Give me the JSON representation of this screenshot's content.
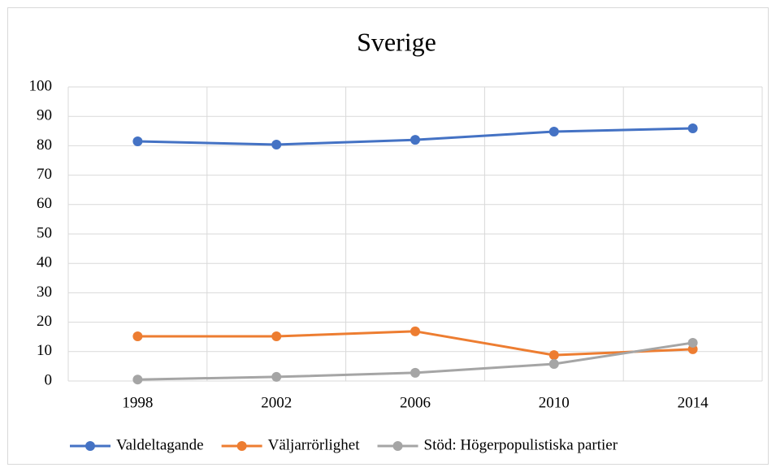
{
  "chart_data": {
    "type": "line",
    "title": "Sverige",
    "categories": [
      "1998",
      "2002",
      "2006",
      "2010",
      "2014"
    ],
    "series": [
      {
        "name": "Valdeltagande",
        "color": "#4472c4",
        "values": [
          81.5,
          80.4,
          82.0,
          84.8,
          85.9
        ]
      },
      {
        "name": "Väljarrörlighet",
        "color": "#ed7d31",
        "values": [
          15.2,
          15.2,
          16.9,
          8.8,
          10.8
        ]
      },
      {
        "name": "Stöd: Högerpopulistiska partier",
        "color": "#a5a5a5",
        "values": [
          0.5,
          1.4,
          2.8,
          5.8,
          13.0
        ]
      }
    ],
    "ylim": [
      0,
      100
    ],
    "yticks": [
      0,
      10,
      20,
      30,
      40,
      50,
      60,
      70,
      80,
      90,
      100
    ],
    "grid": true,
    "legend": "bottom"
  }
}
